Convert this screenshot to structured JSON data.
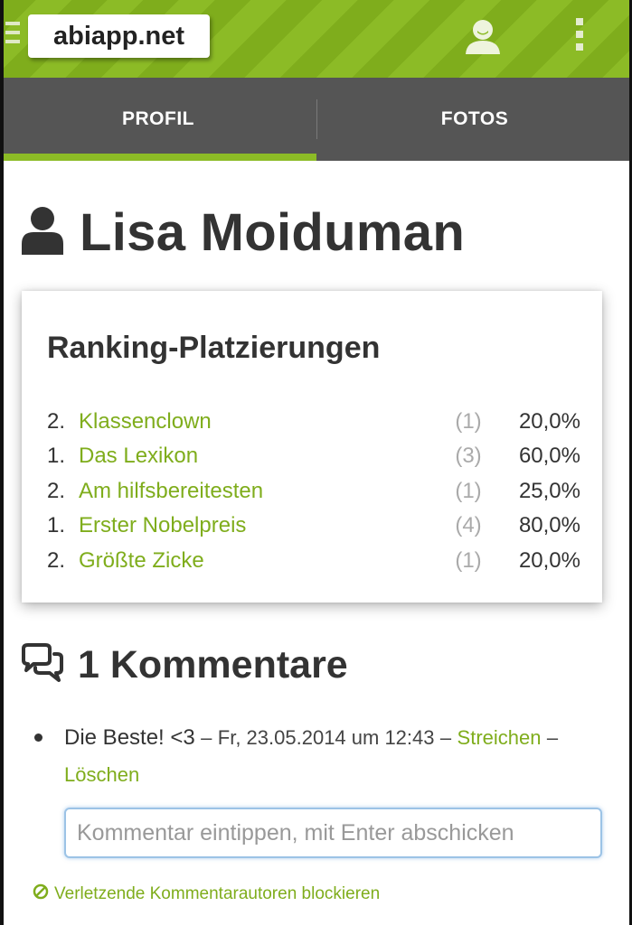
{
  "header": {
    "logo_text": "abiapp.net",
    "menu_icon": "hamburger-icon",
    "user_icon": "user-icon",
    "overflow_icon": "more-vert-icon",
    "accent_color": "#8cbb26"
  },
  "tabs": [
    {
      "label": "PROFIL",
      "active": true
    },
    {
      "label": "FOTOS",
      "active": false
    }
  ],
  "profile": {
    "name": "Lisa Moiduman",
    "icon": "person-icon"
  },
  "ranking": {
    "title": "Ranking-Platzierungen",
    "rows": [
      {
        "place": "2.",
        "category": "Klassenclown",
        "count": "(1)",
        "percent": "20,0%"
      },
      {
        "place": "1.",
        "category": "Das Lexikon",
        "count": "(3)",
        "percent": "60,0%"
      },
      {
        "place": "2.",
        "category": "Am hilfsbereitesten",
        "count": "(1)",
        "percent": "25,0%"
      },
      {
        "place": "1.",
        "category": "Erster Nobelpreis",
        "count": "(4)",
        "percent": "80,0%"
      },
      {
        "place": "2.",
        "category": "Größte Zicke",
        "count": "(1)",
        "percent": "20,0%"
      }
    ]
  },
  "comments": {
    "title": "1 Kommentare",
    "icon": "comments-icon",
    "items": [
      {
        "text": "Die Beste! <3",
        "separator": "–",
        "date": "Fr, 23.05.2014 um 12:43",
        "strike_label": "Streichen",
        "delete_label": "Löschen"
      }
    ],
    "input_placeholder": "Kommentar eintippen, mit Enter abschicken",
    "block_label": "Verletzende Kommentarautoren blockieren",
    "block_icon": "ban-icon"
  }
}
